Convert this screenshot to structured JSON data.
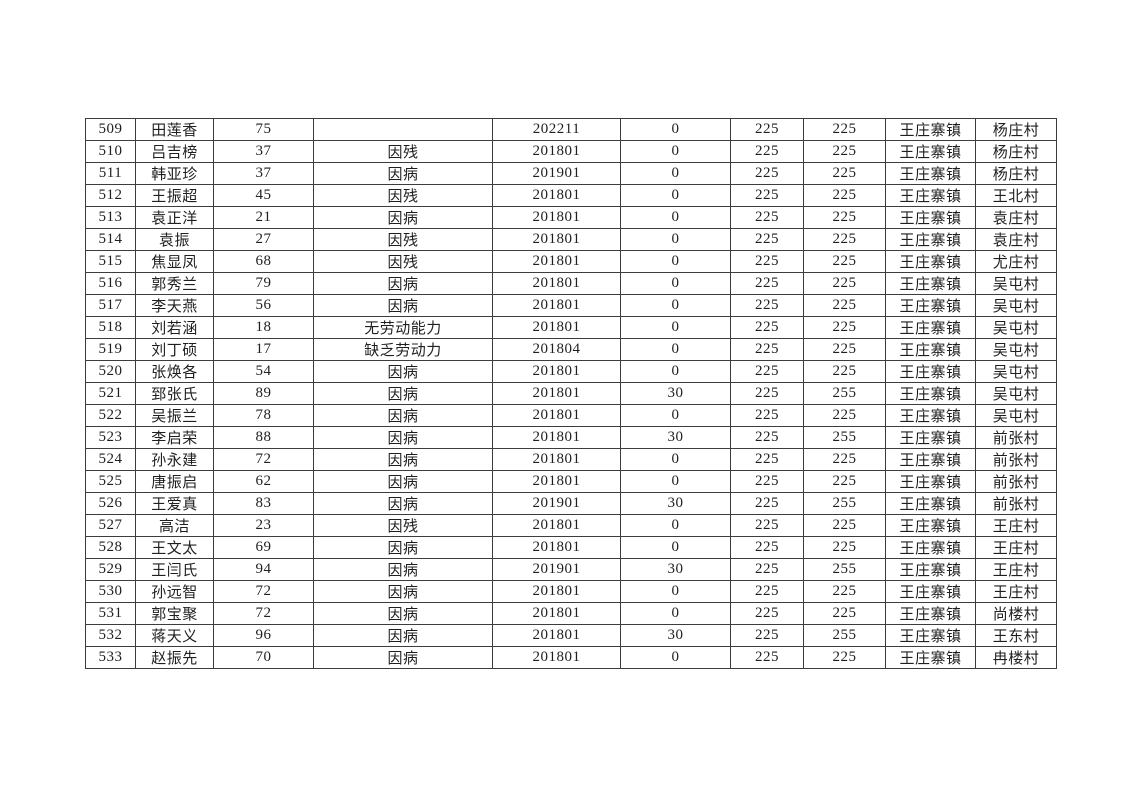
{
  "table": {
    "column_keys": [
      "id",
      "name",
      "age",
      "reason",
      "date",
      "adjust",
      "base",
      "total",
      "town",
      "village"
    ],
    "rows": [
      {
        "id": "509",
        "name": "田莲香",
        "age": "75",
        "reason": "",
        "date": "202211",
        "adjust": "0",
        "base": "225",
        "total": "225",
        "town": "王庄寨镇",
        "village": "杨庄村"
      },
      {
        "id": "510",
        "name": "吕吉榜",
        "age": "37",
        "reason": "因残",
        "date": "201801",
        "adjust": "0",
        "base": "225",
        "total": "225",
        "town": "王庄寨镇",
        "village": "杨庄村"
      },
      {
        "id": "511",
        "name": "韩亚珍",
        "age": "37",
        "reason": "因病",
        "date": "201901",
        "adjust": "0",
        "base": "225",
        "total": "225",
        "town": "王庄寨镇",
        "village": "杨庄村"
      },
      {
        "id": "512",
        "name": "王振超",
        "age": "45",
        "reason": "因残",
        "date": "201801",
        "adjust": "0",
        "base": "225",
        "total": "225",
        "town": "王庄寨镇",
        "village": "王北村"
      },
      {
        "id": "513",
        "name": "袁正洋",
        "age": "21",
        "reason": "因病",
        "date": "201801",
        "adjust": "0",
        "base": "225",
        "total": "225",
        "town": "王庄寨镇",
        "village": "袁庄村"
      },
      {
        "id": "514",
        "name": "袁振",
        "age": "27",
        "reason": "因残",
        "date": "201801",
        "adjust": "0",
        "base": "225",
        "total": "225",
        "town": "王庄寨镇",
        "village": "袁庄村"
      },
      {
        "id": "515",
        "name": "焦显凤",
        "age": "68",
        "reason": "因残",
        "date": "201801",
        "adjust": "0",
        "base": "225",
        "total": "225",
        "town": "王庄寨镇",
        "village": "尤庄村"
      },
      {
        "id": "516",
        "name": "郭秀兰",
        "age": "79",
        "reason": "因病",
        "date": "201801",
        "adjust": "0",
        "base": "225",
        "total": "225",
        "town": "王庄寨镇",
        "village": "吴屯村"
      },
      {
        "id": "517",
        "name": "李天燕",
        "age": "56",
        "reason": "因病",
        "date": "201801",
        "adjust": "0",
        "base": "225",
        "total": "225",
        "town": "王庄寨镇",
        "village": "吴屯村"
      },
      {
        "id": "518",
        "name": "刘若涵",
        "age": "18",
        "reason": "无劳动能力",
        "date": "201801",
        "adjust": "0",
        "base": "225",
        "total": "225",
        "town": "王庄寨镇",
        "village": "吴屯村"
      },
      {
        "id": "519",
        "name": "刘丁硕",
        "age": "17",
        "reason": "缺乏劳动力",
        "date": "201804",
        "adjust": "0",
        "base": "225",
        "total": "225",
        "town": "王庄寨镇",
        "village": "吴屯村"
      },
      {
        "id": "520",
        "name": "张焕各",
        "age": "54",
        "reason": "因病",
        "date": "201801",
        "adjust": "0",
        "base": "225",
        "total": "225",
        "town": "王庄寨镇",
        "village": "吴屯村"
      },
      {
        "id": "521",
        "name": "郅张氏",
        "age": "89",
        "reason": "因病",
        "date": "201801",
        "adjust": "30",
        "base": "225",
        "total": "255",
        "town": "王庄寨镇",
        "village": "吴屯村"
      },
      {
        "id": "522",
        "name": "吴振兰",
        "age": "78",
        "reason": "因病",
        "date": "201801",
        "adjust": "0",
        "base": "225",
        "total": "225",
        "town": "王庄寨镇",
        "village": "吴屯村"
      },
      {
        "id": "523",
        "name": "李启荣",
        "age": "88",
        "reason": "因病",
        "date": "201801",
        "adjust": "30",
        "base": "225",
        "total": "255",
        "town": "王庄寨镇",
        "village": "前张村"
      },
      {
        "id": "524",
        "name": "孙永建",
        "age": "72",
        "reason": "因病",
        "date": "201801",
        "adjust": "0",
        "base": "225",
        "total": "225",
        "town": "王庄寨镇",
        "village": "前张村"
      },
      {
        "id": "525",
        "name": "唐振启",
        "age": "62",
        "reason": "因病",
        "date": "201801",
        "adjust": "0",
        "base": "225",
        "total": "225",
        "town": "王庄寨镇",
        "village": "前张村"
      },
      {
        "id": "526",
        "name": "王爱真",
        "age": "83",
        "reason": "因病",
        "date": "201901",
        "adjust": "30",
        "base": "225",
        "total": "255",
        "town": "王庄寨镇",
        "village": "前张村"
      },
      {
        "id": "527",
        "name": "高洁",
        "age": "23",
        "reason": "因残",
        "date": "201801",
        "adjust": "0",
        "base": "225",
        "total": "225",
        "town": "王庄寨镇",
        "village": "王庄村"
      },
      {
        "id": "528",
        "name": "王文太",
        "age": "69",
        "reason": "因病",
        "date": "201801",
        "adjust": "0",
        "base": "225",
        "total": "225",
        "town": "王庄寨镇",
        "village": "王庄村"
      },
      {
        "id": "529",
        "name": "王闫氏",
        "age": "94",
        "reason": "因病",
        "date": "201901",
        "adjust": "30",
        "base": "225",
        "total": "255",
        "town": "王庄寨镇",
        "village": "王庄村"
      },
      {
        "id": "530",
        "name": "孙远智",
        "age": "72",
        "reason": "因病",
        "date": "201801",
        "adjust": "0",
        "base": "225",
        "total": "225",
        "town": "王庄寨镇",
        "village": "王庄村"
      },
      {
        "id": "531",
        "name": "郭宝聚",
        "age": "72",
        "reason": "因病",
        "date": "201801",
        "adjust": "0",
        "base": "225",
        "total": "225",
        "town": "王庄寨镇",
        "village": "尚楼村"
      },
      {
        "id": "532",
        "name": "蒋天义",
        "age": "96",
        "reason": "因病",
        "date": "201801",
        "adjust": "30",
        "base": "225",
        "total": "255",
        "town": "王庄寨镇",
        "village": "王东村"
      },
      {
        "id": "533",
        "name": "赵振先",
        "age": "70",
        "reason": "因病",
        "date": "201801",
        "adjust": "0",
        "base": "225",
        "total": "225",
        "town": "王庄寨镇",
        "village": "冉楼村"
      }
    ]
  }
}
